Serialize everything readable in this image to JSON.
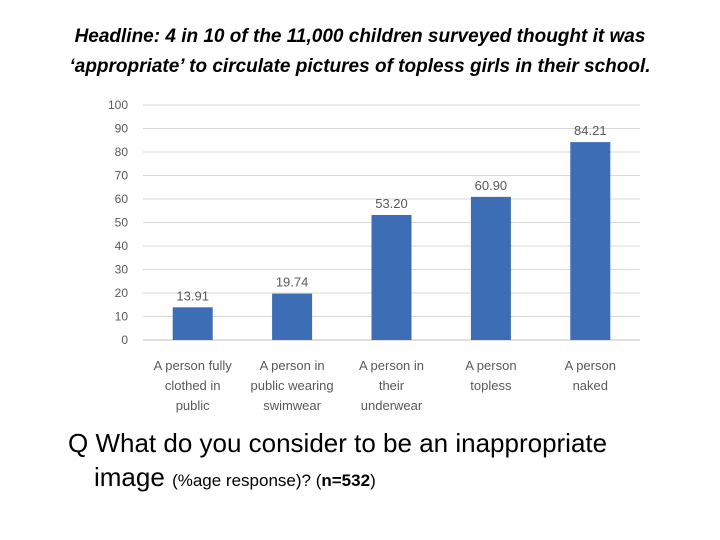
{
  "headline": {
    "line1": "Headline: 4 in 10 of the 11,000 children surveyed thought it was",
    "line2": "‘appropriate’ to circulate pictures of topless girls in their school."
  },
  "chart_data": {
    "type": "bar",
    "categories": [
      [
        "A person fully",
        "clothed in",
        "public"
      ],
      [
        "A person in",
        "public wearing",
        "swimwear"
      ],
      [
        "A person in",
        "their",
        "underwear"
      ],
      [
        "A person",
        "topless"
      ],
      [
        "A person",
        "naked"
      ]
    ],
    "values": [
      13.91,
      19.74,
      53.2,
      60.9,
      84.21
    ],
    "value_labels": [
      "13.91",
      "19.74",
      "53.20",
      "60.90",
      "84.21"
    ],
    "ylim": [
      0,
      100
    ],
    "yticks": [
      0,
      10,
      20,
      30,
      40,
      50,
      60,
      70,
      80,
      90,
      100
    ],
    "grid": true,
    "legend": "none",
    "bar_color": "#3d6db4",
    "grid_color": "#d9d9d9",
    "label_color": "#595959"
  },
  "question": {
    "line1": "Q What do you consider to be an inappropriate",
    "line2_main": "image",
    "line2_small": "(%age response)? (",
    "n_label": "n=532",
    "close": ")"
  }
}
